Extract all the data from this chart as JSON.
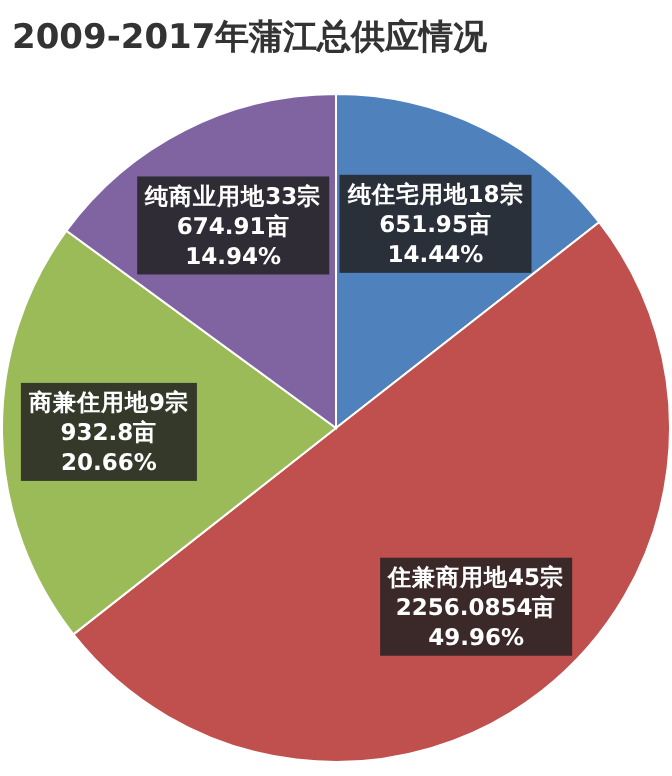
{
  "chart_data": {
    "type": "pie",
    "title": "2009-2017年蒲江总供应情况",
    "categories": [
      "纯住宅用地18宗",
      "住兼商用地45宗",
      "商兼住用地9宗",
      "纯商业用地33宗"
    ],
    "values": [
      651.95,
      2256.0854,
      932.8,
      674.91
    ],
    "colors": [
      "#4f81bd",
      "#c0504d",
      "#9bbb59",
      "#8064a2"
    ],
    "value_labels": [
      "651.95亩\n14.44%",
      "2256.0854亩\n49.96%",
      "932.8亩\n20.66%",
      "674.91亩\n14.94%"
    ]
  }
}
